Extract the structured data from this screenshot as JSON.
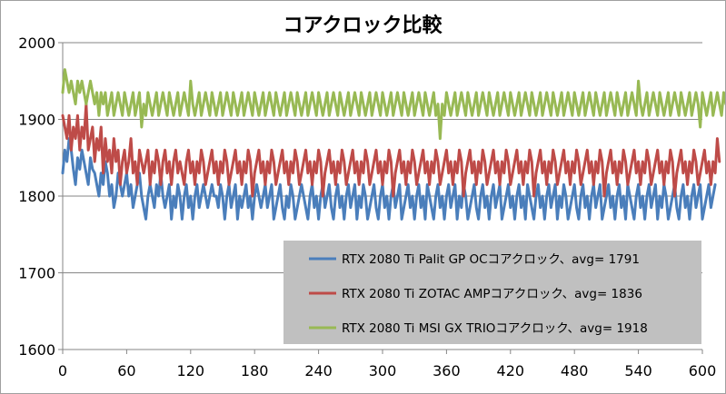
{
  "chart_data": {
    "type": "line",
    "title": "コアクロック比較",
    "xlabel": "",
    "ylabel": "",
    "xlim": [
      0,
      600
    ],
    "ylim": [
      1600,
      2000
    ],
    "x_ticks": [
      0,
      60,
      120,
      180,
      240,
      300,
      360,
      420,
      480,
      540,
      600
    ],
    "y_ticks": [
      1600,
      1700,
      1800,
      1900,
      2000
    ],
    "grid": "horizontal",
    "legend_position": "bottom-right",
    "legend_background": "#c0c0c0",
    "series": [
      {
        "name": "RTX 2080 Ti Palit GP OCコアクロック、avg= 1791",
        "color": "#4a7ebb",
        "x_start": 0,
        "x_step": 2,
        "values": [
          1830,
          1860,
          1845,
          1875,
          1860,
          1835,
          1815,
          1850,
          1835,
          1860,
          1845,
          1830,
          1815,
          1850,
          1835,
          1830,
          1815,
          1800,
          1830,
          1815,
          1845,
          1830,
          1800,
          1815,
          1785,
          1800,
          1830,
          1815,
          1800,
          1815,
          1830,
          1800,
          1815,
          1785,
          1800,
          1815,
          1830,
          1800,
          1785,
          1770,
          1800,
          1815,
          1800,
          1785,
          1815,
          1800,
          1830,
          1800,
          1785,
          1800,
          1815,
          1770,
          1800,
          1785,
          1815,
          1800,
          1770,
          1800,
          1815,
          1785,
          1800,
          1770,
          1800,
          1815,
          1785,
          1800,
          1815,
          1800,
          1785,
          1800,
          1815,
          1800,
          1800,
          1785,
          1815,
          1800,
          1770,
          1800,
          1815,
          1785,
          1800,
          1815,
          1770,
          1800,
          1785,
          1800,
          1815,
          1785,
          1800,
          1770,
          1800,
          1815,
          1800,
          1785,
          1800,
          1815,
          1785,
          1800,
          1815,
          1770,
          1785,
          1800,
          1815,
          1785,
          1770,
          1800,
          1785,
          1815,
          1800,
          1770,
          1785,
          1800,
          1815,
          1800,
          1785,
          1770,
          1800,
          1815,
          1785,
          1800,
          1770,
          1800,
          1815,
          1785,
          1800,
          1815,
          1785,
          1770,
          1800,
          1815,
          1785,
          1800,
          1770,
          1800,
          1815,
          1785,
          1800,
          1815,
          1770,
          1800,
          1785,
          1815,
          1800,
          1770,
          1785,
          1800,
          1815,
          1785,
          1770,
          1800,
          1815,
          1785,
          1800,
          1770,
          1800,
          1815,
          1785,
          1800,
          1815,
          1770,
          1785,
          1800,
          1815,
          1785,
          1800,
          1770,
          1800,
          1815,
          1785,
          1800,
          1770,
          1815,
          1800,
          1785,
          1770,
          1800,
          1815,
          1785,
          1800,
          1770,
          1800,
          1815,
          1785,
          1800,
          1815,
          1770,
          1800,
          1785,
          1815,
          1800,
          1770,
          1785,
          1800,
          1815,
          1785,
          1770,
          1800,
          1815,
          1785,
          1800,
          1770,
          1800,
          1815,
          1785,
          1800,
          1815,
          1770,
          1785,
          1800,
          1815,
          1785,
          1800,
          1770,
          1800,
          1815,
          1785,
          1800,
          1770,
          1815,
          1800,
          1785,
          1770,
          1800,
          1815,
          1785,
          1800,
          1770,
          1800,
          1815,
          1785,
          1800,
          1815,
          1770,
          1800,
          1785,
          1815,
          1800,
          1770,
          1785,
          1800,
          1815,
          1785,
          1770,
          1800,
          1815,
          1785,
          1800,
          1770,
          1800,
          1815,
          1785,
          1800,
          1815,
          1770,
          1785,
          1800,
          1815,
          1785,
          1800,
          1770,
          1800,
          1815,
          1785,
          1800,
          1770,
          1815,
          1800,
          1785,
          1770,
          1800,
          1815,
          1785,
          1800,
          1770,
          1800,
          1815,
          1785,
          1800,
          1815,
          1770,
          1800,
          1785,
          1815,
          1800,
          1770,
          1785,
          1800,
          1815,
          1785,
          1770,
          1800,
          1815,
          1785,
          1800,
          1770,
          1800,
          1815,
          1785,
          1800,
          1815,
          1770,
          1785,
          1800,
          1815,
          1785,
          1800,
          1815
        ]
      },
      {
        "name": "RTX 2080 Ti ZOTAC AMPコアクロック、avg= 1836",
        "color": "#be4b48",
        "x_start": 0,
        "x_step": 2,
        "values": [
          1905,
          1890,
          1875,
          1905,
          1860,
          1890,
          1875,
          1905,
          1860,
          1890,
          1875,
          1920,
          1860,
          1875,
          1890,
          1845,
          1875,
          1860,
          1890,
          1830,
          1875,
          1845,
          1860,
          1830,
          1875,
          1845,
          1860,
          1815,
          1845,
          1860,
          1830,
          1845,
          1875,
          1830,
          1845,
          1815,
          1860,
          1845,
          1830,
          1845,
          1860,
          1815,
          1845,
          1830,
          1860,
          1845,
          1815,
          1845,
          1860,
          1830,
          1845,
          1815,
          1845,
          1860,
          1830,
          1845,
          1830,
          1815,
          1845,
          1860,
          1830,
          1845,
          1815,
          1845,
          1830,
          1860,
          1845,
          1815,
          1830,
          1845,
          1860,
          1830,
          1845,
          1815,
          1845,
          1830,
          1860,
          1845,
          1815,
          1830,
          1845,
          1860,
          1830,
          1845,
          1815,
          1845,
          1830,
          1860,
          1845,
          1800,
          1830,
          1845,
          1860,
          1830,
          1845,
          1815,
          1845,
          1830,
          1860,
          1845,
          1815,
          1830,
          1845,
          1860,
          1830,
          1845,
          1815,
          1845,
          1830,
          1860,
          1845,
          1815,
          1830,
          1845,
          1860,
          1830,
          1845,
          1815,
          1845,
          1830,
          1860,
          1845,
          1800,
          1830,
          1845,
          1860,
          1830,
          1845,
          1815,
          1845,
          1830,
          1860,
          1845,
          1815,
          1830,
          1845,
          1860,
          1830,
          1845,
          1815,
          1845,
          1830,
          1860,
          1845,
          1815,
          1830,
          1845,
          1860,
          1830,
          1845,
          1815,
          1845,
          1830,
          1860,
          1845,
          1800,
          1830,
          1845,
          1860,
          1830,
          1845,
          1815,
          1845,
          1830,
          1860,
          1845,
          1815,
          1830,
          1845,
          1860,
          1830,
          1845,
          1815,
          1845,
          1830,
          1860,
          1845,
          1815,
          1830,
          1845,
          1860,
          1830,
          1845,
          1815,
          1845,
          1830,
          1860,
          1845,
          1800,
          1830,
          1845,
          1860,
          1830,
          1845,
          1815,
          1845,
          1830,
          1860,
          1845,
          1815,
          1830,
          1845,
          1860,
          1830,
          1845,
          1815,
          1845,
          1830,
          1860,
          1845,
          1815,
          1830,
          1845,
          1860,
          1830,
          1845,
          1815,
          1845,
          1830,
          1860,
          1845,
          1800,
          1830,
          1845,
          1860,
          1830,
          1845,
          1815,
          1845,
          1830,
          1860,
          1845,
          1815,
          1830,
          1845,
          1860,
          1830,
          1845,
          1815,
          1845,
          1830,
          1860,
          1845,
          1815,
          1830,
          1845,
          1860,
          1830,
          1845,
          1815,
          1845,
          1830,
          1860,
          1845,
          1800,
          1830,
          1845,
          1860,
          1830,
          1845,
          1815,
          1845,
          1830,
          1860,
          1845,
          1815,
          1830,
          1845,
          1860,
          1830,
          1845,
          1815,
          1845,
          1830,
          1860,
          1845,
          1815,
          1830,
          1845,
          1860,
          1830,
          1845,
          1815,
          1845,
          1830,
          1860,
          1845,
          1800,
          1830,
          1845,
          1860,
          1830,
          1845,
          1815,
          1845,
          1830,
          1860,
          1845,
          1815,
          1830,
          1845,
          1860,
          1830,
          1845,
          1815,
          1845,
          1830,
          1875,
          1845
        ]
      },
      {
        "name": "RTX 2080 Ti MSI GX TRIOコアクロック、avg= 1918",
        "color": "#98b954",
        "x_start": 0,
        "x_step": 2,
        "values": [
          1935,
          1965,
          1950,
          1935,
          1950,
          1935,
          1920,
          1950,
          1935,
          1950,
          1935,
          1920,
          1935,
          1950,
          1935,
          1920,
          1935,
          1905,
          1935,
          1920,
          1935,
          1905,
          1920,
          1935,
          1905,
          1920,
          1935,
          1920,
          1905,
          1935,
          1920,
          1905,
          1920,
          1935,
          1905,
          1920,
          1935,
          1890,
          1920,
          1905,
          1935,
          1920,
          1905,
          1920,
          1935,
          1905,
          1920,
          1935,
          1920,
          1905,
          1935,
          1920,
          1905,
          1920,
          1935,
          1905,
          1920,
          1935,
          1920,
          1905,
          1950,
          1920,
          1905,
          1920,
          1935,
          1905,
          1920,
          1935,
          1920,
          1905,
          1935,
          1920,
          1905,
          1920,
          1935,
          1905,
          1920,
          1935,
          1920,
          1905,
          1935,
          1920,
          1905,
          1920,
          1935,
          1905,
          1920,
          1935,
          1920,
          1905,
          1935,
          1920,
          1905,
          1920,
          1935,
          1905,
          1920,
          1935,
          1920,
          1905,
          1935,
          1920,
          1905,
          1920,
          1935,
          1905,
          1920,
          1935,
          1920,
          1905,
          1935,
          1920,
          1905,
          1920,
          1935,
          1905,
          1920,
          1935,
          1920,
          1905,
          1935,
          1920,
          1905,
          1920,
          1935,
          1905,
          1920,
          1935,
          1920,
          1905,
          1935,
          1920,
          1905,
          1920,
          1935,
          1905,
          1920,
          1935,
          1920,
          1905,
          1935,
          1920,
          1905,
          1920,
          1935,
          1905,
          1920,
          1935,
          1920,
          1905,
          1935,
          1920,
          1905,
          1920,
          1935,
          1905,
          1920,
          1935,
          1920,
          1905,
          1935,
          1920,
          1905,
          1920,
          1935,
          1905,
          1920,
          1935,
          1920,
          1905,
          1935,
          1920,
          1905,
          1920,
          1935,
          1905,
          1920,
          1875,
          1920,
          1905,
          1935,
          1920,
          1905,
          1920,
          1935,
          1905,
          1920,
          1935,
          1920,
          1905,
          1935,
          1920,
          1905,
          1920,
          1935,
          1905,
          1920,
          1935,
          1920,
          1905,
          1935,
          1920,
          1905,
          1920,
          1935,
          1905,
          1920,
          1935,
          1920,
          1905,
          1935,
          1920,
          1905,
          1920,
          1935,
          1905,
          1920,
          1935,
          1920,
          1905,
          1935,
          1920,
          1905,
          1920,
          1935,
          1905,
          1920,
          1935,
          1920,
          1905,
          1935,
          1920,
          1905,
          1920,
          1935,
          1905,
          1920,
          1935,
          1920,
          1905,
          1935,
          1920,
          1905,
          1920,
          1935,
          1905,
          1920,
          1935,
          1920,
          1905,
          1935,
          1920,
          1905,
          1920,
          1935,
          1905,
          1920,
          1935,
          1920,
          1905,
          1935,
          1920,
          1905,
          1920,
          1935,
          1905,
          1920,
          1935,
          1920,
          1905,
          1950,
          1920,
          1905,
          1920,
          1935,
          1905,
          1920,
          1935,
          1920,
          1905,
          1935,
          1920,
          1905,
          1920,
          1935,
          1905,
          1920,
          1935,
          1920,
          1905,
          1935,
          1920,
          1905,
          1920,
          1935,
          1905,
          1920,
          1935,
          1920,
          1890,
          1935,
          1920,
          1905,
          1920,
          1935,
          1905,
          1920,
          1935,
          1920,
          1905,
          1935,
          1920
        ]
      }
    ]
  }
}
